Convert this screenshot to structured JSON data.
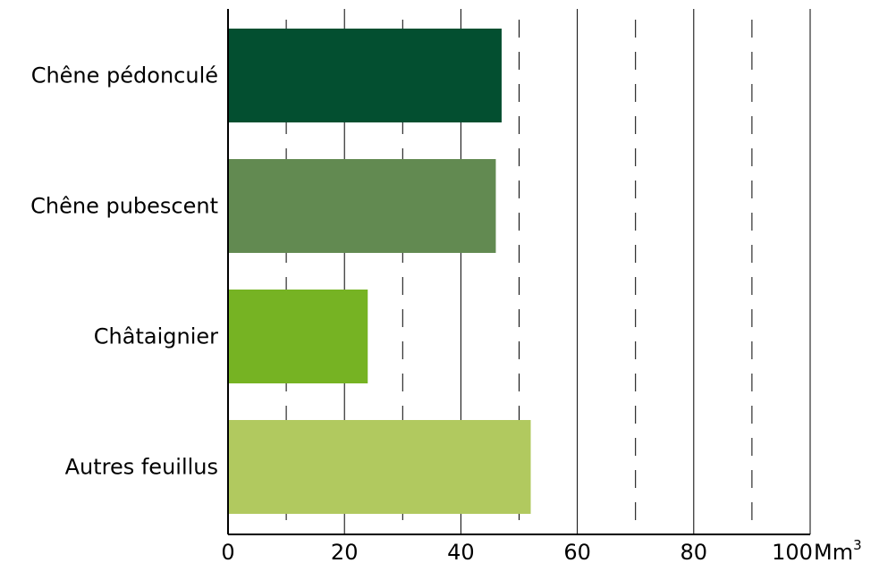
{
  "chart_data": {
    "type": "bar",
    "orientation": "horizontal",
    "categories": [
      "Chêne pédonculé",
      "Chêne pubescent",
      "Châtaignier",
      "Autres feuillus"
    ],
    "values": [
      47,
      46,
      24,
      52
    ],
    "colors": [
      "#034f30",
      "#628a51",
      "#76b323",
      "#b1c95f"
    ],
    "xlim": [
      0,
      100
    ],
    "xticks": [
      0,
      20,
      40,
      60,
      80,
      100
    ],
    "x_tick_labels": [
      "0",
      "20",
      "40",
      "60",
      "80",
      "100"
    ],
    "unit_label": "Mm",
    "unit_superscript": "3",
    "major_grid": [
      20,
      40,
      60,
      80,
      100
    ],
    "minor_grid_dashed": [
      10,
      30,
      50,
      70,
      90
    ],
    "title": "",
    "xlabel": "",
    "ylabel": ""
  }
}
